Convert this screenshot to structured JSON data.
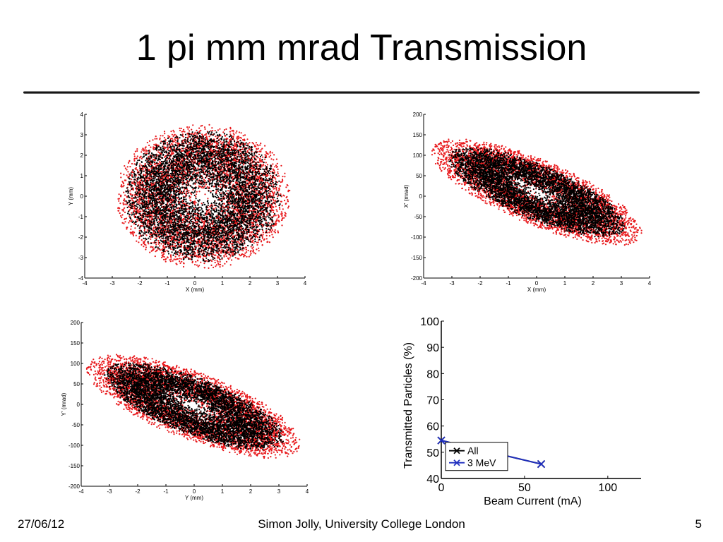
{
  "slide": {
    "title": "1 pi mm mrad Transmission",
    "footer_date": "27/06/12",
    "footer_center": "Simon Jolly, University College London",
    "page_number": "5"
  },
  "colors": {
    "particles_all": "#000000",
    "particles_3mev": "#e8191c",
    "series_all": "#000000",
    "series_3mev": "#1f2fbf"
  },
  "chart_data": [
    {
      "type": "scatter",
      "xlabel": "X (mm)",
      "ylabel": "Y (mm)",
      "xlim": [
        -4,
        4
      ],
      "ylim": [
        -4,
        4
      ],
      "xticks": [
        -4,
        -3,
        -2,
        -1,
        0,
        1,
        2,
        3,
        4
      ],
      "yticks": [
        -4,
        -3,
        -2,
        -1,
        0,
        1,
        2,
        3,
        4
      ],
      "grid": false,
      "distribution": {
        "center": [
          0.3,
          0.0
        ],
        "semi_axes": [
          3.15,
          3.55
        ],
        "tilt_deg": 0,
        "black_fraction_of_extent": 0.9
      }
    },
    {
      "type": "scatter",
      "xlabel": "X (mm)",
      "ylabel": "X' (mrad)",
      "xlim": [
        -4,
        4
      ],
      "ylim": [
        -200,
        200
      ],
      "xticks": [
        -4,
        -3,
        -2,
        -1,
        0,
        1,
        2,
        3,
        4
      ],
      "yticks": [
        -200,
        -150,
        -100,
        -50,
        0,
        50,
        100,
        150,
        200
      ],
      "grid": false,
      "distribution": {
        "center": [
          0.0,
          10
        ],
        "semi_axes": [
          4.3,
          75
        ],
        "tilt_deg": -32,
        "black_fraction_of_extent": 0.84
      }
    },
    {
      "type": "scatter",
      "xlabel": "Y (mm)",
      "ylabel": "Y' (mrad)",
      "xlim": [
        -4,
        4
      ],
      "ylim": [
        -200,
        200
      ],
      "xticks": [
        -4,
        -3,
        -2,
        -1,
        0,
        1,
        2,
        3,
        4
      ],
      "yticks": [
        -200,
        -150,
        -100,
        -50,
        0,
        50,
        100,
        150,
        200
      ],
      "grid": false,
      "distribution": {
        "center": [
          0.0,
          -5
        ],
        "semi_axes": [
          4.3,
          78
        ],
        "tilt_deg": -30,
        "black_fraction_of_extent": 0.84
      }
    },
    {
      "type": "line",
      "xlabel": "Beam Current (mA)",
      "ylabel": "Transmitted Particles (%)",
      "xlim": [
        0,
        120
      ],
      "ylim": [
        40,
        100
      ],
      "xticks": [
        0,
        50,
        100
      ],
      "yticks": [
        40,
        50,
        60,
        70,
        80,
        90,
        100
      ],
      "grid": false,
      "legend_position": "bottom-left",
      "series": [
        {
          "name": "All",
          "x": [
            0,
            60
          ],
          "y": [
            54.5,
            45.5
          ],
          "marker": "x"
        },
        {
          "name": "3 MeV",
          "x": [
            0,
            60
          ],
          "y": [
            54.5,
            45.5
          ],
          "marker": "x"
        }
      ]
    }
  ]
}
